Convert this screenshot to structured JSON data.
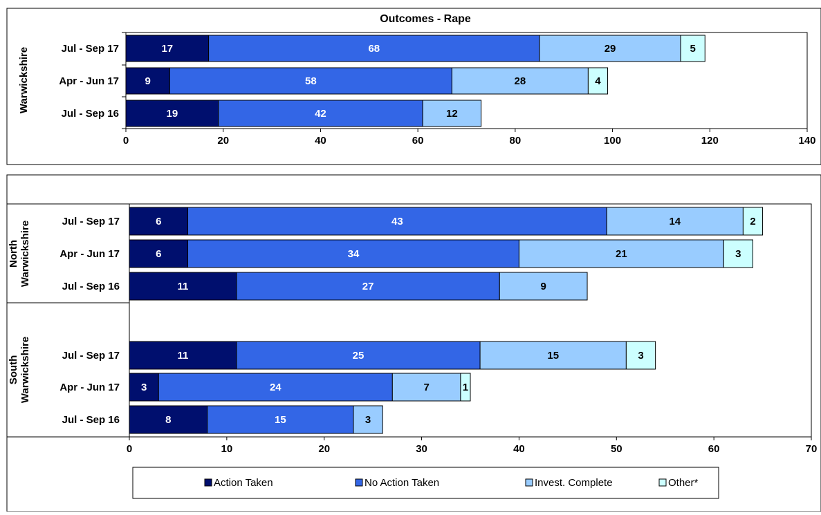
{
  "colors": {
    "Action Taken": "#000f6e",
    "No Action Taken": "#3366e6",
    "Invest. Complete": "#99ccff",
    "Other*": "#ccffff"
  },
  "segment_label_colors": {
    "Action Taken": "#ffffff",
    "No Action Taken": "#ffffff",
    "Invest. Complete": "#000000",
    "Other*": "#000000"
  },
  "legend": [
    "Action Taken",
    "No Action Taken",
    "Invest. Complete",
    "Other*"
  ],
  "chart_data": [
    {
      "type": "bar",
      "orientation": "horizontal",
      "stacked": true,
      "title": "Outcomes - Rape",
      "group_label": "Warwickshire",
      "categories": [
        "Jul - Sep 17",
        "Apr - Jun 17",
        "Jul - Sep 16"
      ],
      "series": [
        {
          "name": "Action Taken",
          "values": [
            17,
            9,
            19
          ]
        },
        {
          "name": "No Action Taken",
          "values": [
            68,
            58,
            42
          ]
        },
        {
          "name": "Invest. Complete",
          "values": [
            29,
            28,
            12
          ]
        },
        {
          "name": "Other*",
          "values": [
            5,
            4,
            0
          ]
        }
      ],
      "xlim": [
        0,
        140
      ],
      "xticks": [
        0,
        20,
        40,
        60,
        80,
        100,
        120,
        140
      ],
      "grid": false
    },
    {
      "type": "bar",
      "orientation": "horizontal",
      "stacked": true,
      "title": "",
      "groups": [
        {
          "label_lines": [
            "North",
            "Warwickshire"
          ],
          "categories": [
            "Jul - Sep 17",
            "Apr - Jun 17",
            "Jul - Sep 16"
          ],
          "series": [
            {
              "name": "Action Taken",
              "values": [
                6,
                6,
                11
              ]
            },
            {
              "name": "No Action Taken",
              "values": [
                43,
                34,
                27
              ]
            },
            {
              "name": "Invest. Complete",
              "values": [
                14,
                21,
                9
              ]
            },
            {
              "name": "Other*",
              "values": [
                2,
                3,
                0
              ]
            }
          ]
        },
        {
          "label_lines": [
            "South",
            "Warwickshire"
          ],
          "categories": [
            "Jul - Sep 17",
            "Apr - Jun 17",
            "Jul - Sep 16"
          ],
          "series": [
            {
              "name": "Action Taken",
              "values": [
                11,
                3,
                8
              ]
            },
            {
              "name": "No Action Taken",
              "values": [
                25,
                24,
                15
              ]
            },
            {
              "name": "Invest. Complete",
              "values": [
                15,
                7,
                3
              ]
            },
            {
              "name": "Other*",
              "values": [
                3,
                1,
                0
              ]
            }
          ]
        }
      ],
      "xlim": [
        0,
        70
      ],
      "xticks": [
        0,
        10,
        20,
        30,
        40,
        50,
        60,
        70
      ],
      "grid": false,
      "legend_position": "bottom"
    }
  ]
}
